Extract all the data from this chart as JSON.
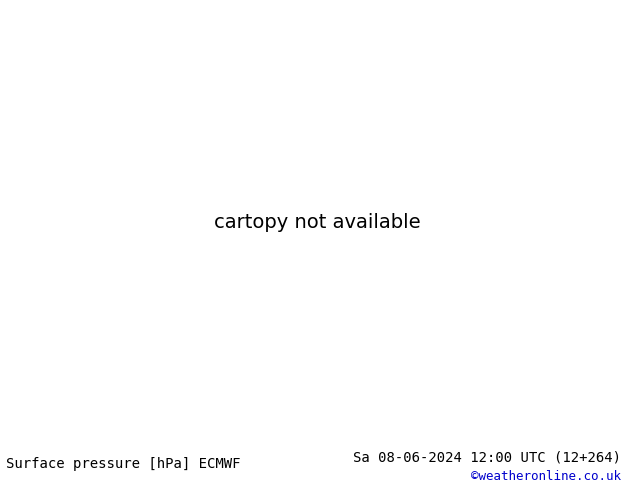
{
  "title_left": "Surface pressure [hPa] ECMWF",
  "title_right": "Sa 08-06-2024 12:00 UTC (12+264)",
  "copyright": "©weatheronline.co.uk",
  "copyright_color": "#0000cc",
  "sea_color": "#b8c8d8",
  "land_color": "#b8d8b0",
  "land_edge_color": "#909090",
  "bottom_bar_color": "#ffffff",
  "title_fontsize": 10,
  "copyright_fontsize": 9,
  "lon_min": -25,
  "lon_max": 45,
  "lat_min": 30,
  "lat_max": 72
}
